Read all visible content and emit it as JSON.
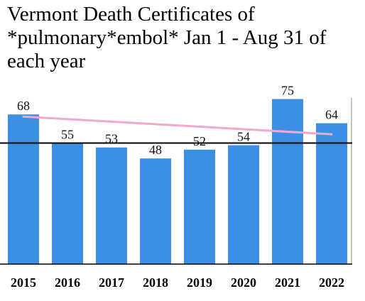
{
  "chart_data": {
    "type": "bar",
    "title": "Vermont Death Certificates of *pulmonary*embol* Jan 1 - Aug 31 of each year",
    "categories": [
      "2015",
      "2016",
      "2017",
      "2018",
      "2019",
      "2020",
      "2021",
      "2022"
    ],
    "values": [
      68,
      55,
      53,
      48,
      52,
      54,
      75,
      64
    ],
    "ylim": [
      0,
      80
    ],
    "reference_line": 55,
    "trend_line": {
      "start": 67,
      "end": 59
    },
    "colors": {
      "bar": "#3d8fe6",
      "trend": "#f0a8d0",
      "reference": "#000000"
    },
    "grid": false,
    "legend": "none"
  }
}
